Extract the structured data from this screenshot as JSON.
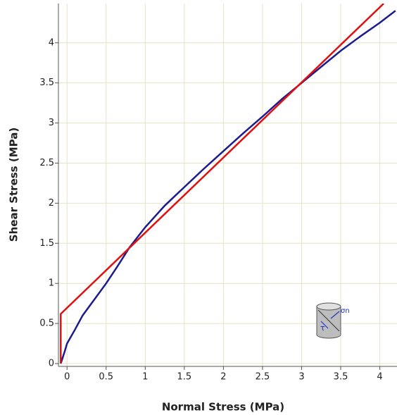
{
  "chart_data": {
    "type": "line",
    "x_label": "Normal Stress (MPa)",
    "y_label": "Shear Stress (MPa)",
    "xlim": [
      -0.11,
      4.22
    ],
    "ylim": [
      -0.035,
      4.49
    ],
    "xticks": [
      0,
      0.5,
      1,
      1.5,
      2,
      2.5,
      3,
      3.5,
      4
    ],
    "yticks": [
      0,
      0.5,
      1,
      1.5,
      2,
      2.5,
      3,
      3.5,
      4
    ],
    "grid": true,
    "series": [
      {
        "color": "#1c1c8e",
        "x": [
          -0.08,
          -0.03,
          0,
          0.1,
          0.2,
          0.35,
          0.5,
          0.65,
          0.8,
          1,
          1.25,
          1.5,
          1.75,
          2,
          2.25,
          2.5,
          2.75,
          3,
          3.25,
          3.5,
          3.75,
          4,
          4.2
        ],
        "values": [
          0,
          0.15,
          0.25,
          0.42,
          0.6,
          0.8,
          1.0,
          1.22,
          1.45,
          1.7,
          1.97,
          2.2,
          2.43,
          2.65,
          2.87,
          3.08,
          3.3,
          3.5,
          3.7,
          3.9,
          4.08,
          4.25,
          4.4
        ]
      },
      {
        "color": "#e01010",
        "x": [
          -0.08,
          -0.08,
          4.05
        ],
        "values": [
          0,
          0.62,
          4.49
        ]
      }
    ],
    "annotations": [
      "σn",
      "τ"
    ]
  }
}
